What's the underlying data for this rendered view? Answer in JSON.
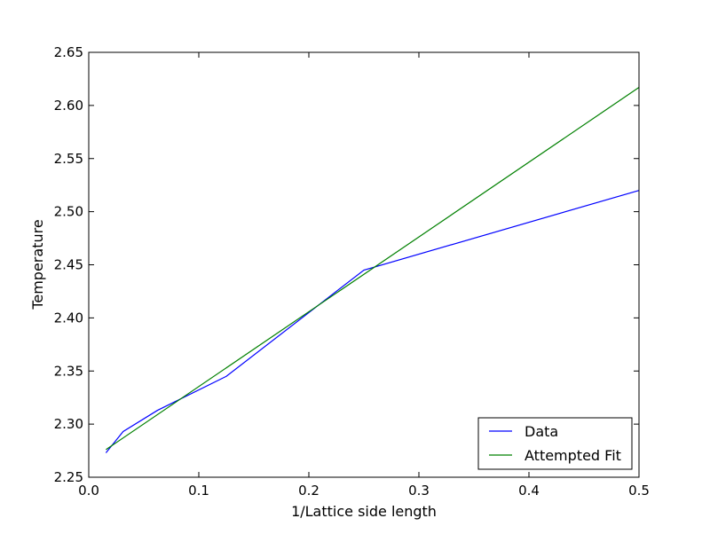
{
  "chart_data": {
    "type": "line",
    "title": "",
    "xlabel": "1/Lattice side length",
    "ylabel": "Temperature",
    "xlim": [
      0.0,
      0.5
    ],
    "ylim": [
      2.25,
      2.65
    ],
    "x_ticks": [
      "0.0",
      "0.1",
      "0.2",
      "0.3",
      "0.4",
      "0.5"
    ],
    "y_ticks": [
      "2.25",
      "2.30",
      "2.35",
      "2.40",
      "2.45",
      "2.50",
      "2.55",
      "2.60",
      "2.65"
    ],
    "grid": false,
    "legend_position": "lower right",
    "series": [
      {
        "name": "Data",
        "color": "#0000ff",
        "x": [
          0.015625,
          0.03125,
          0.0625,
          0.125,
          0.25,
          0.5
        ],
        "y": [
          2.273,
          2.293,
          2.313,
          2.345,
          2.445,
          2.52
        ]
      },
      {
        "name": "Attempted Fit",
        "color": "#008000",
        "x": [
          0.015625,
          0.5
        ],
        "y": [
          2.276,
          2.617
        ]
      }
    ]
  }
}
